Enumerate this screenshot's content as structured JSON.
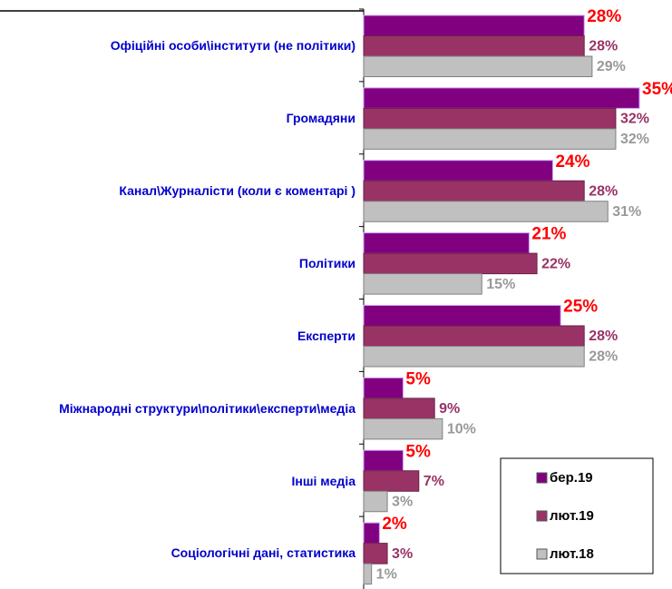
{
  "chart_data": {
    "type": "hbar",
    "categories": [
      "Офіційні особи\\інститути (не політики)",
      "Громадяни",
      "Канал\\Журналісти (коли є коментарі )",
      "Політики",
      "Експерти",
      "Міжнародні структури\\політики\\експерти\\медіа",
      "Інші медіа",
      "Соціологічні дані, статистика"
    ],
    "series": [
      {
        "name": "бер.19",
        "color": "#800080",
        "label_color": "#ff0000",
        "values": [
          28,
          35,
          24,
          21,
          25,
          5,
          5,
          2
        ],
        "value_labels": [
          "28%",
          "35%",
          "24%",
          "21%",
          "25%",
          "5%",
          "5%",
          "2%"
        ]
      },
      {
        "name": "лют.19",
        "color": "#993366",
        "label_color": "#993366",
        "values": [
          28,
          32,
          28,
          22,
          28,
          9,
          7,
          3
        ],
        "value_labels": [
          "28%",
          "32%",
          "28%",
          "22%",
          "28%",
          "9%",
          "7%",
          "3%"
        ]
      },
      {
        "name": "лют.18",
        "color": "#c0c0c0",
        "label_color": "#999999",
        "values": [
          29,
          32,
          31,
          15,
          28,
          10,
          3,
          1
        ],
        "value_labels": [
          "29%",
          "32%",
          "31%",
          "15%",
          "28%",
          "10%",
          "3%",
          "1%"
        ]
      }
    ],
    "legend": "lower right"
  }
}
